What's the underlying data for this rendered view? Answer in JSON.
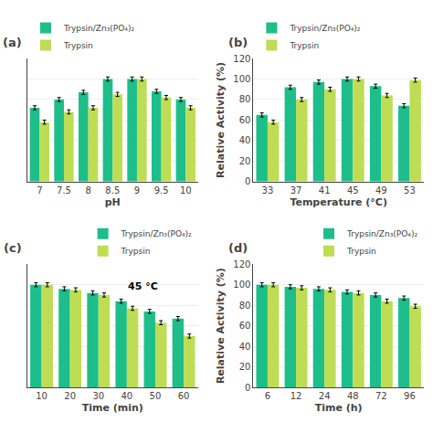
{
  "chart_data": [
    {
      "type": "bar",
      "title": "(a)",
      "xlabel": "pH",
      "categories": [
        "7",
        "7.5",
        "8",
        "8.5",
        "9",
        "9.5",
        "10"
      ],
      "series": [
        {
          "name": "Trypsin/Zn₃(PO₄)₂",
          "color": "#1EBE8A",
          "values": [
            72,
            80,
            87,
            100,
            100,
            88,
            80
          ],
          "errors": [
            2,
            2,
            2,
            2,
            2,
            2,
            2
          ]
        },
        {
          "name": "Trypsin",
          "color": "#BEDD55",
          "values": [
            58,
            68,
            72,
            85,
            100,
            82,
            72
          ],
          "errors": [
            2,
            2,
            2,
            2,
            2,
            2,
            2
          ]
        }
      ],
      "ylim": [
        0,
        120
      ],
      "yticks": [
        0,
        20,
        40,
        60,
        80,
        100,
        120
      ],
      "tick_labels": "x",
      "grid": true,
      "legend": "upper left"
    },
    {
      "type": "bar",
      "title": "(b)",
      "xlabel": "Temperature (°C)",
      "ylabel": "Relative Activity (%)",
      "categories": [
        "33",
        "37",
        "41",
        "45",
        "49",
        "53"
      ],
      "series": [
        {
          "name": "Trypsin/Zn₃(PO₄)₂",
          "color": "#1EBE8A",
          "values": [
            65,
            92,
            97,
            100,
            93,
            74
          ],
          "errors": [
            2,
            2,
            2,
            2,
            2,
            2
          ]
        },
        {
          "name": "Trypsin",
          "color": "#BEDD55",
          "values": [
            58,
            80,
            90,
            100,
            84,
            99
          ],
          "errors": [
            2,
            2,
            2,
            2,
            2,
            2
          ]
        }
      ],
      "ylim": [
        0,
        120
      ],
      "yticks": [
        0,
        20,
        40,
        60,
        80,
        100,
        120
      ],
      "grid": true,
      "legend": "upper left"
    },
    {
      "type": "bar",
      "title": "(c)",
      "xlabel": "Time (min)",
      "categories": [
        "10",
        "20",
        "30",
        "40",
        "50",
        "60"
      ],
      "series": [
        {
          "name": "Trypsin/Zn₃(PO₄)₂",
          "color": "#1EBE8A",
          "values": [
            100,
            96,
            92,
            84,
            74,
            67
          ],
          "errors": [
            2,
            2,
            2,
            2,
            2,
            2
          ]
        },
        {
          "name": "Trypsin",
          "color": "#BEDD55",
          "values": [
            100,
            95,
            90,
            77,
            63,
            50
          ],
          "errors": [
            2,
            2,
            2,
            2,
            2,
            2
          ]
        }
      ],
      "ylim": [
        0,
        120
      ],
      "yticks": [
        0,
        20,
        40,
        60,
        80,
        100,
        120
      ],
      "tick_labels": "x",
      "grid": true,
      "legend": "upper right",
      "annotations": [
        "45 °C"
      ]
    },
    {
      "type": "bar",
      "title": "(d)",
      "xlabel": "Time (h)",
      "ylabel": "Relative Activity (%)",
      "categories": [
        "6",
        "12",
        "24",
        "48",
        "72",
        "96"
      ],
      "series": [
        {
          "name": "Trypsin/Zn₃(PO₄)₂",
          "color": "#1EBE8A",
          "values": [
            100,
            98,
            96,
            93,
            90,
            87
          ],
          "errors": [
            2,
            2,
            2,
            2,
            2,
            2
          ]
        },
        {
          "name": "Trypsin",
          "color": "#BEDD55",
          "values": [
            100,
            97,
            95,
            92,
            84,
            79
          ],
          "errors": [
            2,
            2,
            2,
            2,
            2,
            2
          ]
        }
      ],
      "ylim": [
        0,
        120
      ],
      "yticks": [
        0,
        20,
        40,
        60,
        80,
        100,
        120
      ],
      "grid": true,
      "legend": "upper right"
    }
  ]
}
